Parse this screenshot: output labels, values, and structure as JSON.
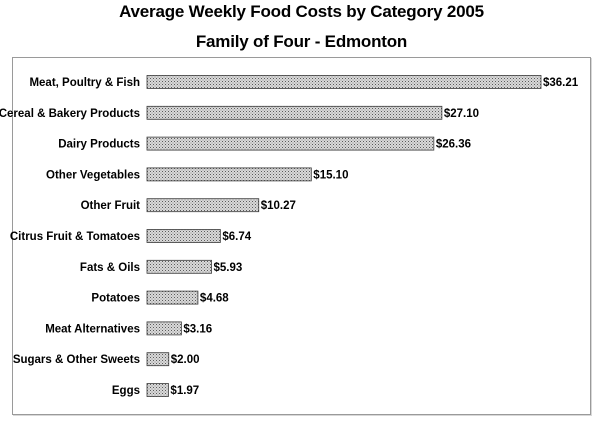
{
  "page": {
    "title": "Average Weekly Food Costs by Category 2005",
    "subtitle": "Family of Four - Edmonton"
  },
  "chart_data": {
    "type": "bar",
    "orientation": "horizontal",
    "title": "Average Weekly Food Costs by Category 2005",
    "subtitle": "Family of Four - Edmonton",
    "xlabel": "",
    "ylabel": "",
    "grid": false,
    "legend": "none",
    "bar_pattern": "dotted-gray",
    "bar_color": "#bdbdbd",
    "categories": [
      "Meat, Poultry & Fish",
      "Cereal & Bakery Products",
      "Dairy Products",
      "Other Vegetables",
      "Other Fruit",
      "Citrus Fruit & Tomatoes",
      "Fats & Oils",
      "Potatoes",
      "Meat Alternatives",
      "Sugars & Other Sweets",
      "Eggs"
    ],
    "values": [
      36.21,
      27.1,
      26.36,
      15.1,
      10.27,
      6.74,
      5.93,
      4.68,
      3.16,
      2.0,
      1.97
    ],
    "value_labels": [
      "$36.21",
      "$27.10",
      "$26.36",
      "$15.10",
      "$10.27",
      "$6.74",
      "$5.93",
      "$4.68",
      "$3.16",
      "$2.00",
      "$1.97"
    ],
    "xlim": [
      0,
      36.21
    ]
  }
}
